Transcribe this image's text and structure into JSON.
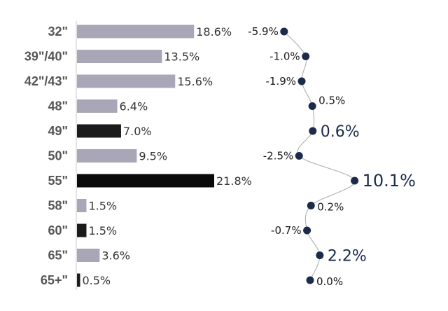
{
  "chart_data": {
    "type": "bar",
    "categories": [
      "32\"",
      "39\"/40\"",
      "42\"/43\"",
      "48\"",
      "49\"",
      "50\"",
      "55\"",
      "58\"",
      "60\"",
      "65\"",
      "65+\""
    ],
    "values": [
      18.6,
      13.5,
      15.6,
      6.4,
      7.0,
      9.5,
      21.8,
      1.5,
      1.5,
      3.6,
      0.5
    ],
    "value_labels": [
      "18.6%",
      "13.5%",
      "15.6%",
      "6.4%",
      "7.0%",
      "9.5%",
      "21.8%",
      "1.5%",
      "1.5%",
      "3.6%",
      "0.5%"
    ],
    "highlighted": [
      false,
      false,
      false,
      false,
      true,
      false,
      true,
      false,
      true,
      false,
      true
    ],
    "change": {
      "type": "line",
      "values": [
        -5.9,
        -1.0,
        -1.9,
        0.5,
        0.6,
        -2.5,
        10.1,
        0.2,
        -0.7,
        2.2,
        0.0
      ],
      "labels": [
        "-5.9%",
        "-1.0%",
        "-1.9%",
        "0.5%",
        "0.6%",
        "-2.5%",
        "10.1%",
        "0.2%",
        "-0.7%",
        "2.2%",
        "0.0%"
      ],
      "emphasized": [
        false,
        false,
        false,
        false,
        true,
        false,
        true,
        false,
        false,
        true,
        false
      ]
    },
    "colors": {
      "bar_default": "#a9a6b8",
      "bar_highlight": "#1b1b1b",
      "bar_highlight_strong": "#0a0a0a",
      "line": "#b5b5b5",
      "marker": "#1c2b4a"
    }
  }
}
